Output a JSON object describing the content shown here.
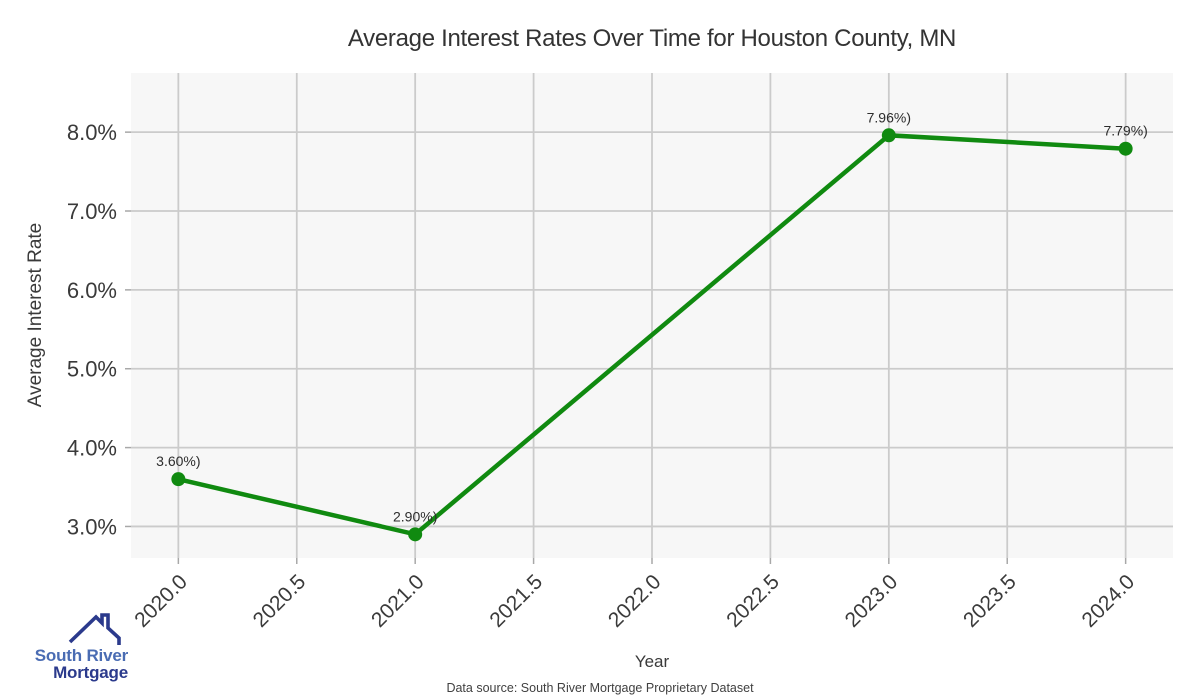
{
  "chart_data": {
    "type": "line",
    "title": "Average Interest Rates Over Time for Houston County, MN",
    "xlabel": "Year",
    "ylabel": "Average Interest Rate",
    "x": [
      2020.0,
      2021.0,
      2023.0,
      2024.0
    ],
    "y": [
      3.6,
      2.9,
      7.96,
      7.79
    ],
    "point_labels": [
      "3.60%)",
      "2.90%)",
      "7.96%)",
      "7.79%)"
    ],
    "xlim": [
      2019.8,
      2024.2
    ],
    "ylim": [
      2.6,
      8.75
    ],
    "xticks": {
      "values": [
        2020.0,
        2020.5,
        2021.0,
        2021.5,
        2022.0,
        2022.5,
        2023.0,
        2023.5,
        2024.0
      ],
      "labels": [
        "2020.0",
        "2020.5",
        "2021.0",
        "2021.5",
        "2022.0",
        "2022.5",
        "2023.0",
        "2023.5",
        "2024.0"
      ]
    },
    "yticks": {
      "values": [
        3.0,
        4.0,
        5.0,
        6.0,
        7.0,
        8.0
      ],
      "labels": [
        "3.0%",
        "4.0%",
        "5.0%",
        "6.0%",
        "7.0%",
        "8.0%"
      ]
    },
    "grid": true,
    "legend": "none",
    "line_color": "#108a10",
    "plot_bg_color": "#f7f7f7",
    "grid_color": "#cbcbcb",
    "tick_color": "#a8a8a8",
    "text_color": "#3a3a3a"
  },
  "footer": {
    "source_text": "Data source: South River Mortgage Proprietary Dataset"
  },
  "logo": {
    "line1": "South River",
    "line2": "Mortgage",
    "color1": "#4a6cb3",
    "color2": "#2b3a8c"
  }
}
